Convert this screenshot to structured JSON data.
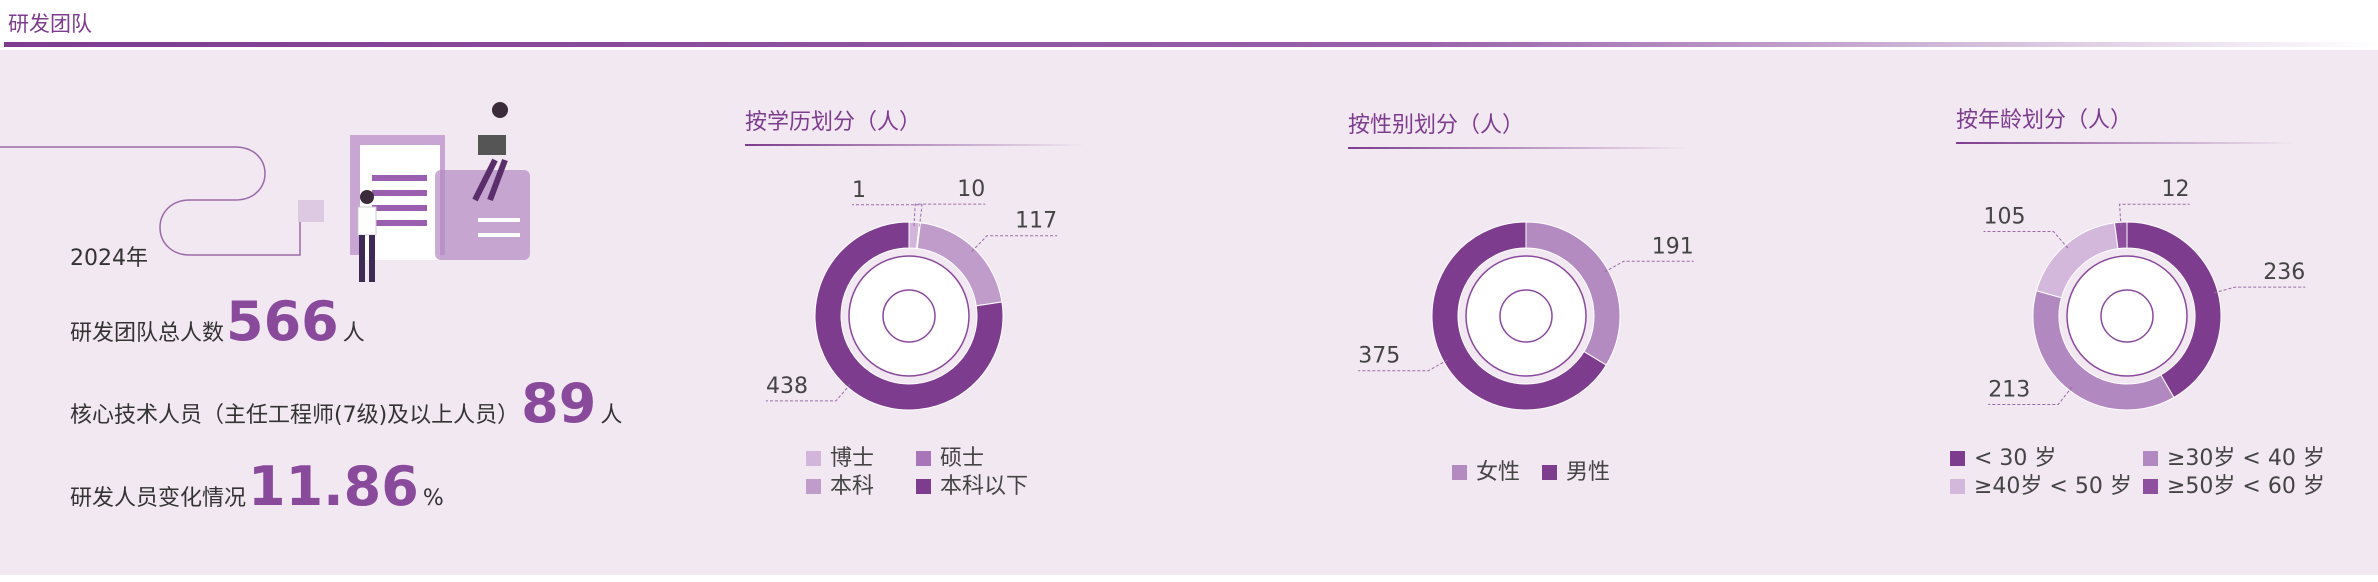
{
  "header": {
    "title": "研发团队"
  },
  "stats": {
    "year": "2024年",
    "items": [
      {
        "label": "研发团队总人数",
        "value": 566,
        "unit": "人"
      },
      {
        "label": "核心技术人员（主任工程师(7级)及以上人员）",
        "value": 89,
        "unit": "人"
      },
      {
        "label": "研发人员变化情况",
        "value": 11.86,
        "unit": "%"
      }
    ]
  },
  "chart_data": [
    {
      "type": "pie",
      "donut": true,
      "title": "按学历划分（人）",
      "categories": [
        "博士",
        "硕士",
        "本科",
        "本科以下"
      ],
      "values": [
        10,
        1,
        117,
        438
      ],
      "colors": [
        "#d3b5dc",
        "#a876b8",
        "#c09ccb",
        "#7d3c8e"
      ]
    },
    {
      "type": "pie",
      "donut": true,
      "title": "按性别划分（人）",
      "categories": [
        "女性",
        "男性"
      ],
      "values": [
        191,
        375
      ],
      "colors": [
        "#b38bc1",
        "#7d3c8e"
      ]
    },
    {
      "type": "pie",
      "donut": true,
      "title": "按年龄划分（人）",
      "categories": [
        "< 30 岁",
        "≥30岁 < 40 岁",
        "≥40岁 < 50 岁",
        "≥50岁 < 60 岁"
      ],
      "values": [
        236,
        213,
        105,
        12
      ],
      "colors": [
        "#7d3c8e",
        "#b288c0",
        "#d3b8dc",
        "#8e4f9f"
      ]
    }
  ]
}
